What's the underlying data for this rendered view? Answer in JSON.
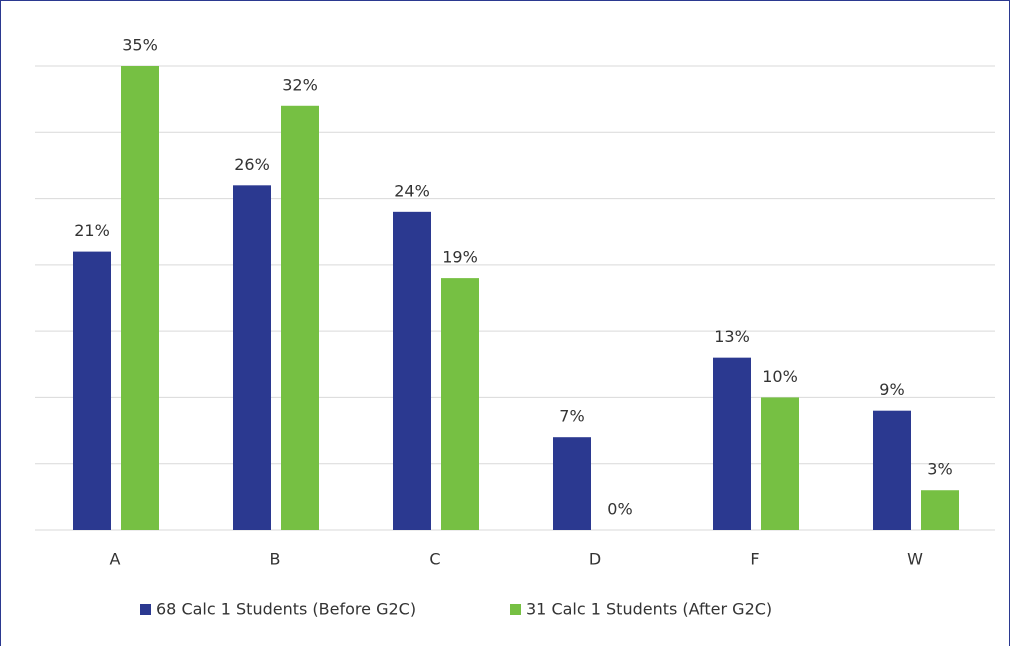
{
  "chart_data": {
    "type": "bar",
    "categories": [
      "A",
      "B",
      "C",
      "D",
      "F",
      "W"
    ],
    "series": [
      {
        "name": "68 Calc 1 Students (Before G2C)",
        "color": "#2b3990",
        "values": [
          21,
          26,
          24,
          7,
          13,
          9
        ],
        "value_labels": [
          "21%",
          "26%",
          "24%",
          "7%",
          "13%",
          "9%"
        ]
      },
      {
        "name": "31 Calc 1 Students (After G2C)",
        "color": "#76c043",
        "values": [
          35,
          32,
          19,
          0,
          10,
          3
        ],
        "value_labels": [
          "35%",
          "32%",
          "19%",
          "0%",
          "10%",
          "3%"
        ]
      }
    ],
    "ylim": [
      0,
      35
    ],
    "yticks": [
      0,
      5,
      10,
      15,
      20,
      25,
      30,
      35
    ],
    "grid": true,
    "legend": "bottom"
  }
}
